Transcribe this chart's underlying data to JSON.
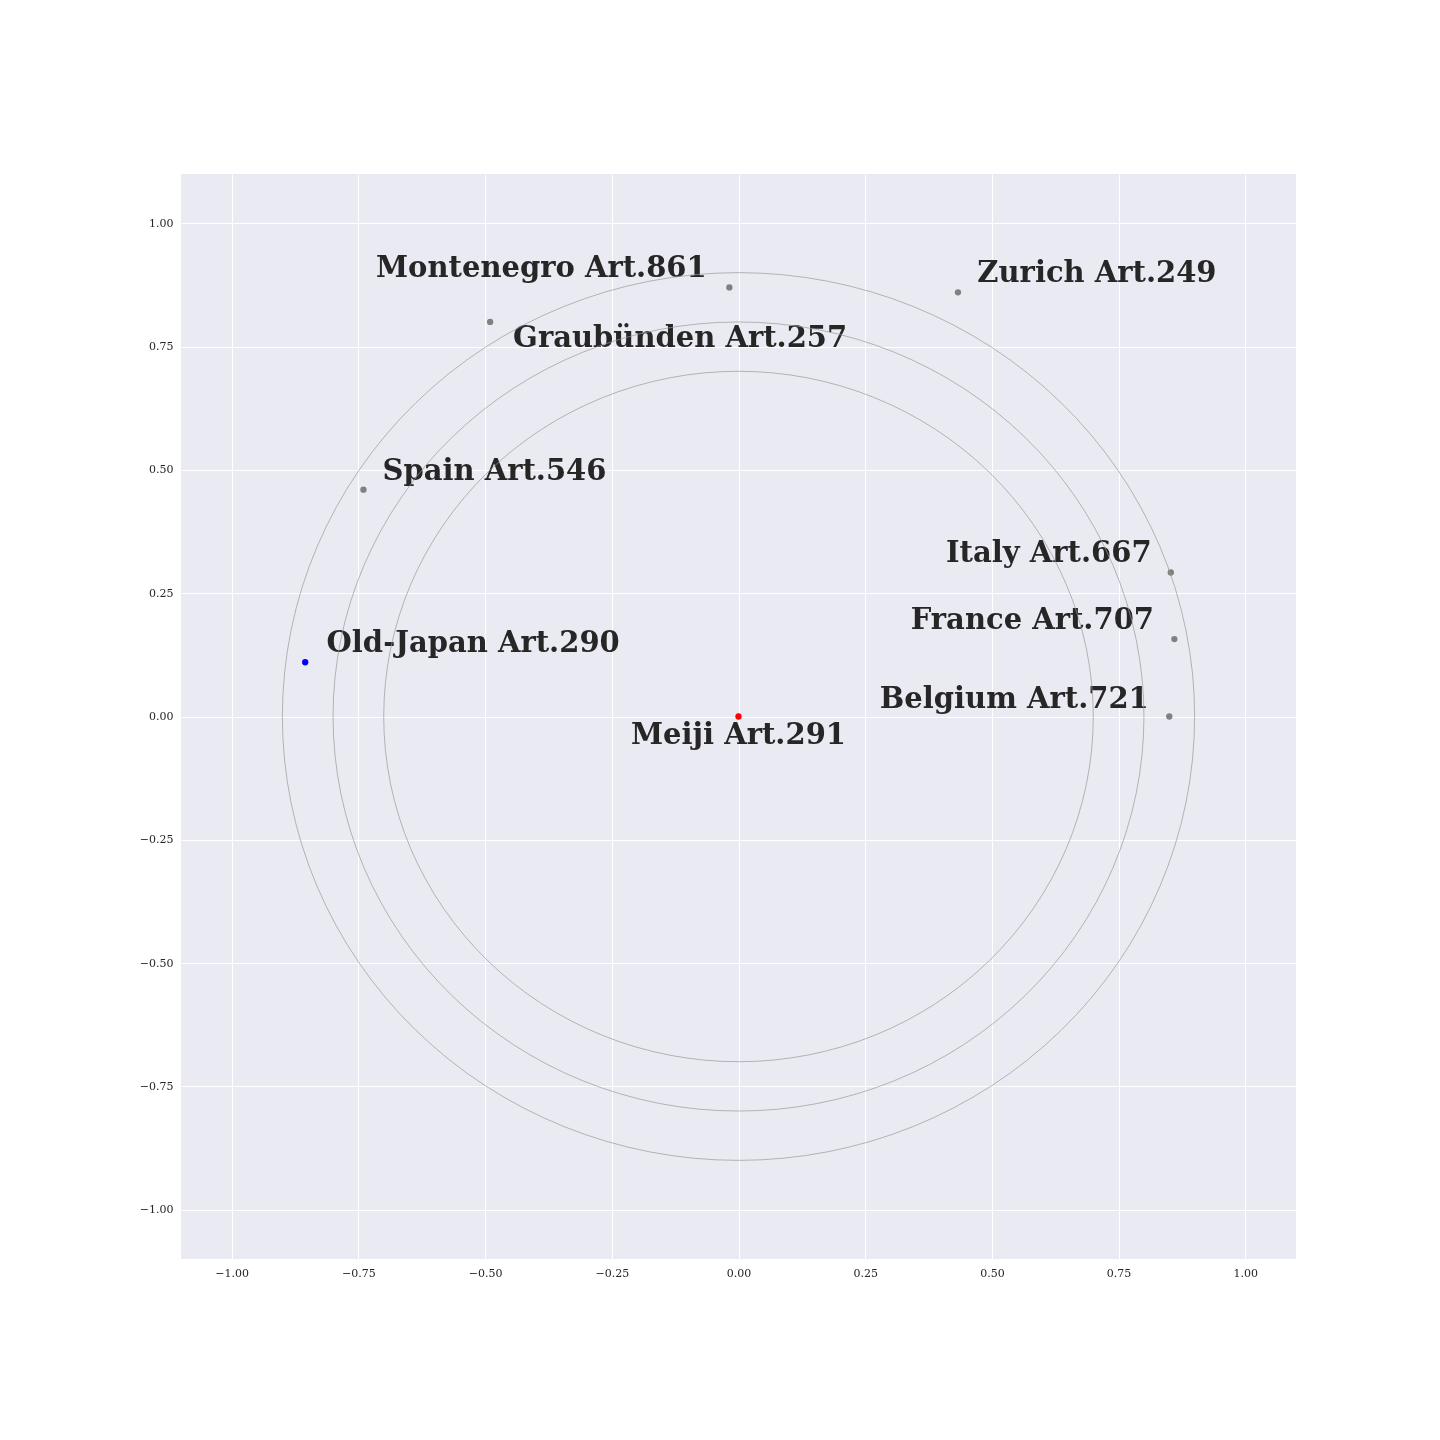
{
  "chart_data": {
    "type": "scatter",
    "x": [
      0,
      -0.855,
      -0.74,
      -0.018,
      -0.49,
      0.433,
      0.853,
      0.86,
      0.85
    ],
    "values": [
      0,
      0.11,
      0.46,
      0.87,
      0.8,
      0.86,
      0.292,
      0.157,
      0.0
    ],
    "colors": [
      "#ff0000",
      "#0000ff",
      "#808080",
      "#808080",
      "#808080",
      "#808080",
      "#808080",
      "#808080",
      "#808080"
    ],
    "annotations": [
      {
        "text": "Meiji Art.291",
        "x": 0,
        "y": 0
      },
      {
        "text": "Old-Japan Art.290",
        "x": -0.855,
        "y": 0.11
      },
      {
        "text": "Spain Art.546",
        "x": -0.74,
        "y": 0.46
      },
      {
        "text": "Montenegro Art.861",
        "x": -0.018,
        "y": 0.87
      },
      {
        "text": "Graubünden Art.257",
        "x": -0.49,
        "y": 0.8
      },
      {
        "text": "Zurich Art.249",
        "x": 0.433,
        "y": 0.86
      },
      {
        "text": "Italy Art.667",
        "x": 0.853,
        "y": 0.292
      },
      {
        "text": "France Art.707",
        "x": 0.86,
        "y": 0.157
      },
      {
        "text": "Belgium Art.721",
        "x": 0.85,
        "y": 0.0
      }
    ],
    "xlim": [
      -1.1,
      1.1
    ],
    "ylim": [
      -1.1,
      1.1
    ],
    "xticks": [
      {
        "value": -1,
        "label": "−1.00"
      },
      {
        "value": -0.75,
        "label": "−0.75"
      },
      {
        "value": -0.5,
        "label": "−0.50"
      },
      {
        "value": -0.25,
        "label": "−0.25"
      },
      {
        "value": 0,
        "label": "0.00"
      },
      {
        "value": 0.25,
        "label": "0.25"
      },
      {
        "value": 0.5,
        "label": "0.50"
      },
      {
        "value": 0.75,
        "label": "0.75"
      },
      {
        "value": 1,
        "label": "1.00"
      }
    ],
    "yticks": [
      {
        "value": -1,
        "label": "−1.00"
      },
      {
        "value": -0.75,
        "label": "−0.75"
      },
      {
        "value": -0.5,
        "label": "−0.50"
      },
      {
        "value": -0.25,
        "label": "−0.25"
      },
      {
        "value": 0,
        "label": "0.00"
      },
      {
        "value": 0.25,
        "label": "0.25"
      },
      {
        "value": 0.5,
        "label": "0.50"
      },
      {
        "value": 0.75,
        "label": "0.75"
      },
      {
        "value": 1,
        "label": "1.00"
      }
    ],
    "grid": true,
    "marker": "circle"
  }
}
